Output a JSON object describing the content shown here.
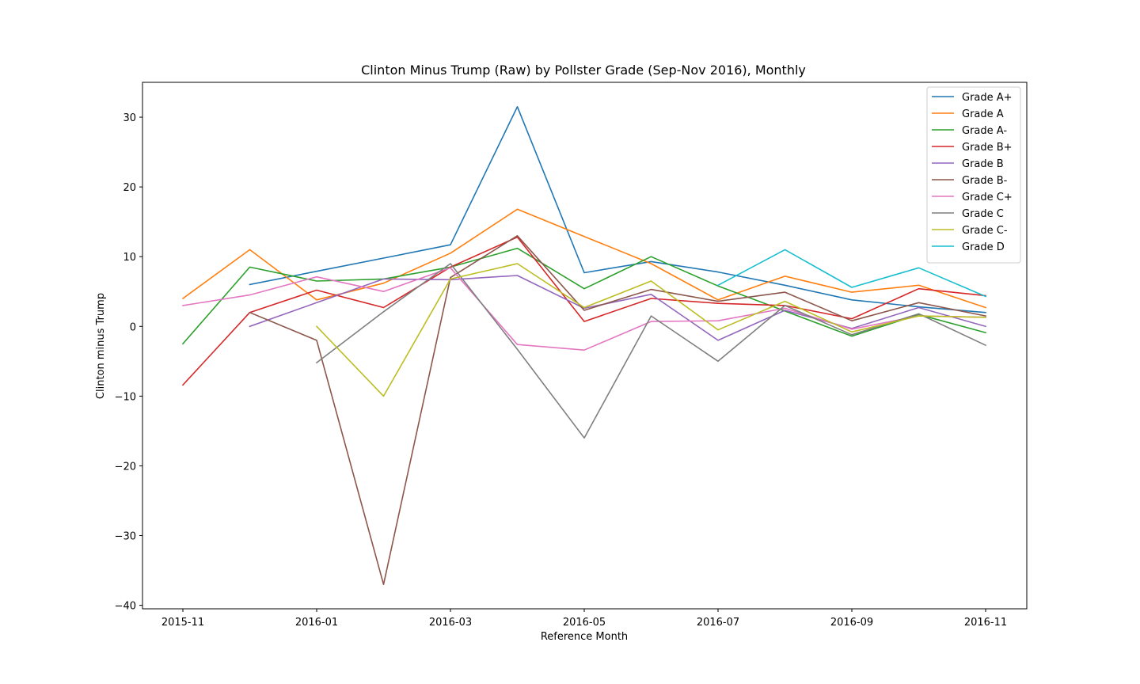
{
  "chart_data": {
    "type": "line",
    "title": "Clinton Minus Trump (Raw) by Pollster Grade (Sep-Nov 2016), Monthly",
    "xlabel": "Reference Month",
    "ylabel": "Clinton minus Trump",
    "x": [
      "2015-11",
      "2015-12",
      "2016-01",
      "2016-02",
      "2016-03",
      "2016-04",
      "2016-05",
      "2016-06",
      "2016-07",
      "2016-08",
      "2016-09",
      "2016-10",
      "2016-11"
    ],
    "x_tick_labels": [
      "2015-11",
      "2016-01",
      "2016-03",
      "2016-05",
      "2016-07",
      "2016-09",
      "2016-11"
    ],
    "ylim": [
      -40.5,
      35.0
    ],
    "y_ticks": [
      -40,
      -30,
      -20,
      -10,
      0,
      10,
      20,
      30
    ],
    "y_tick_labels": [
      "−40",
      "−30",
      "−20",
      "−10",
      "0",
      "10",
      "20",
      "30"
    ],
    "grid": false,
    "legend_position": "top-right",
    "series": [
      {
        "name": "Grade A+",
        "color": "#1f77b4",
        "values": [
          null,
          6.0,
          7.9,
          9.8,
          11.7,
          31.5,
          7.7,
          9.3,
          7.8,
          5.9,
          3.8,
          2.8,
          2.0
        ]
      },
      {
        "name": "Grade A",
        "color": "#ff7f0e",
        "values": [
          4.0,
          11.0,
          3.8,
          6.2,
          10.5,
          16.8,
          12.9,
          9.0,
          3.8,
          7.2,
          4.9,
          5.9,
          2.7
        ]
      },
      {
        "name": "Grade A-",
        "color": "#2ca02c",
        "values": [
          -2.5,
          8.5,
          6.5,
          6.8,
          8.5,
          11.2,
          5.4,
          10.0,
          5.8,
          2.2,
          -1.4,
          1.7,
          -0.9
        ]
      },
      {
        "name": "Grade B+",
        "color": "#d62728",
        "values": [
          -8.4,
          2.0,
          5.2,
          2.7,
          8.5,
          12.8,
          0.7,
          4.0,
          3.3,
          3.0,
          1.1,
          5.4,
          4.4
        ]
      },
      {
        "name": "Grade B",
        "color": "#9467bd",
        "values": [
          null,
          0.0,
          3.4,
          6.8,
          6.7,
          7.3,
          2.6,
          4.6,
          -2.0,
          2.3,
          -0.3,
          2.7,
          0.0
        ]
      },
      {
        "name": "Grade B-",
        "color": "#8c564b",
        "values": [
          null,
          2.0,
          -2.0,
          -37.0,
          7.0,
          13.0,
          2.3,
          5.3,
          3.6,
          4.9,
          0.8,
          3.4,
          1.5
        ]
      },
      {
        "name": "Grade C+",
        "color": "#e377c2",
        "values": [
          3.0,
          4.5,
          7.1,
          5.0,
          8.4,
          -2.6,
          -3.4,
          0.7,
          0.8,
          2.6,
          -0.4,
          1.5,
          1.3
        ]
      },
      {
        "name": "Grade C",
        "color": "#7f7f7f",
        "values": [
          null,
          null,
          -5.2,
          2.1,
          9.0,
          -3.3,
          -16.0,
          1.5,
          -5.0,
          3.0,
          -1.2,
          1.8,
          -2.7
        ]
      },
      {
        "name": "Grade C-",
        "color": "#bcbd22",
        "values": [
          null,
          null,
          0.0,
          -10.0,
          6.8,
          9.0,
          2.7,
          6.5,
          -0.5,
          3.6,
          -0.8,
          1.5,
          1.3
        ]
      },
      {
        "name": "Grade D",
        "color": "#17becf",
        "values": [
          null,
          null,
          null,
          null,
          null,
          null,
          null,
          null,
          5.9,
          11.0,
          5.6,
          8.4,
          4.3
        ]
      }
    ]
  }
}
